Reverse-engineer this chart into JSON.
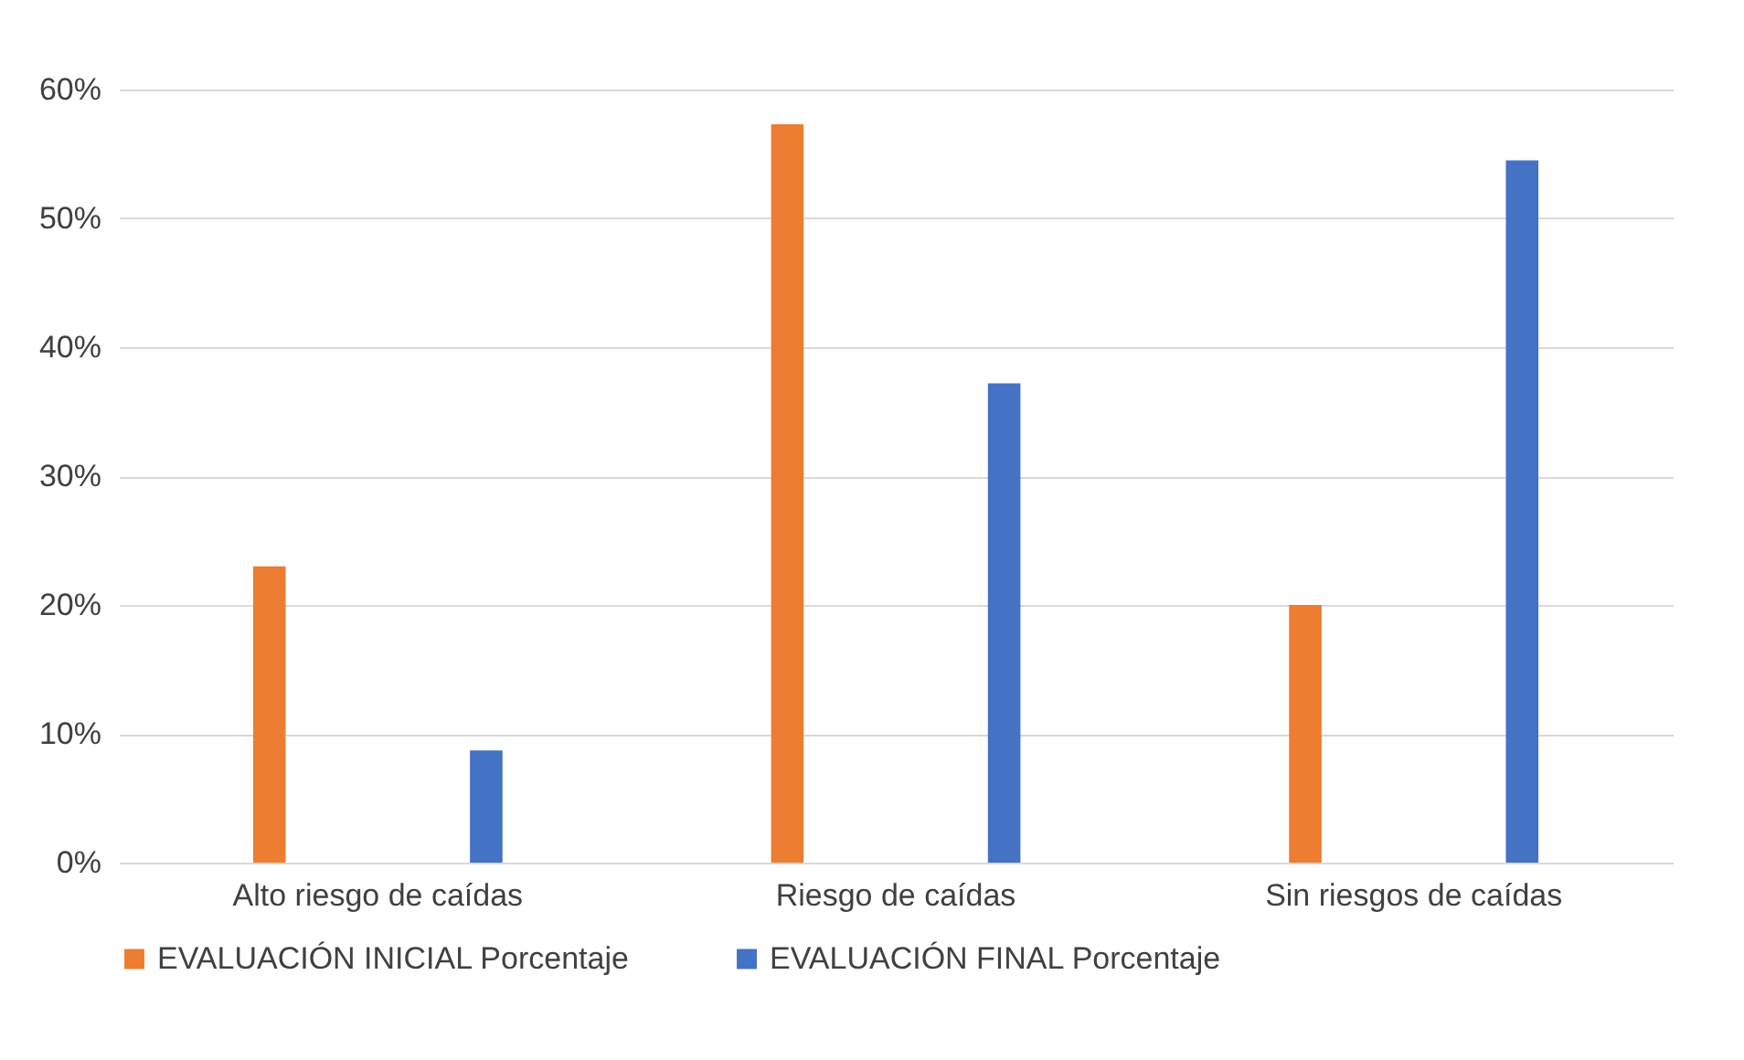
{
  "chart_data": {
    "type": "bar",
    "categories": [
      "Alto riesgo de caídas",
      "Riesgo de caídas",
      "Sin riesgos de caídas"
    ],
    "series": [
      {
        "name": "EVALUACIÓN INICIAL  Porcentaje",
        "color": "#ed7d31",
        "values": [
          23,
          57.3,
          20
        ]
      },
      {
        "name": "EVALUACIÓN FINAL Porcentaje",
        "color": "#4472c4",
        "values": [
          8.7,
          37.2,
          54.5
        ]
      }
    ],
    "ylim": [
      0,
      60
    ],
    "yticks": [
      {
        "value": 0,
        "label": "0%"
      },
      {
        "value": 10,
        "label": "10%"
      },
      {
        "value": 20,
        "label": "20%"
      },
      {
        "value": 30,
        "label": "30%"
      },
      {
        "value": 40,
        "label": "40%"
      },
      {
        "value": 50,
        "label": "50%"
      },
      {
        "value": 60,
        "label": "60%"
      }
    ],
    "grid": "y",
    "legend": "bottom"
  }
}
